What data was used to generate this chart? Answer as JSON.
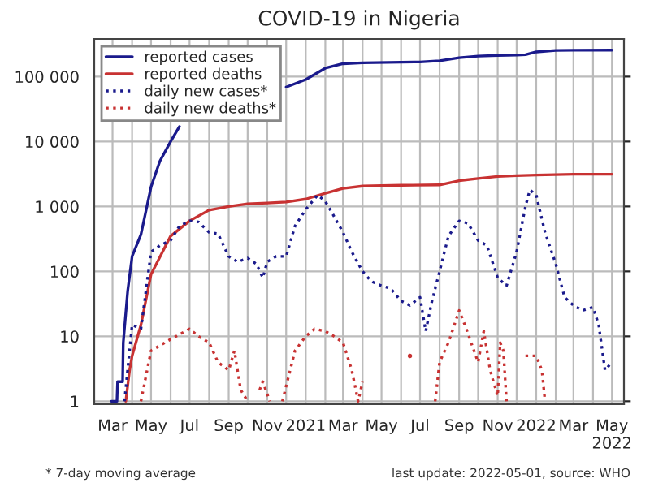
{
  "chart_data": {
    "type": "line",
    "title": "COVID-19 in Nigeria",
    "annotations": [
      "* 7-day moving average",
      "last update: 2022-05-01, source: WHO"
    ],
    "xlim": [
      "2020-02-01",
      "2022-05-20"
    ],
    "xticks": [
      {
        "value": "2020-03-01",
        "label": "Mar"
      },
      {
        "value": "2020-04-01",
        "label": null
      },
      {
        "value": "2020-05-01",
        "label": "May"
      },
      {
        "value": "2020-06-01",
        "label": null
      },
      {
        "value": "2020-07-01",
        "label": "Jul"
      },
      {
        "value": "2020-08-01",
        "label": null
      },
      {
        "value": "2020-09-01",
        "label": "Sep"
      },
      {
        "value": "2020-10-01",
        "label": null
      },
      {
        "value": "2020-11-01",
        "label": "Nov"
      },
      {
        "value": "2020-12-01",
        "label": null
      },
      {
        "value": "2021-01-01",
        "label": "2021"
      },
      {
        "value": "2021-02-01",
        "label": null
      },
      {
        "value": "2021-03-01",
        "label": "Mar"
      },
      {
        "value": "2021-04-01",
        "label": null
      },
      {
        "value": "2021-05-01",
        "label": "May"
      },
      {
        "value": "2021-06-01",
        "label": null
      },
      {
        "value": "2021-07-01",
        "label": "Jul"
      },
      {
        "value": "2021-08-01",
        "label": null
      },
      {
        "value": "2021-09-01",
        "label": "Sep"
      },
      {
        "value": "2021-10-01",
        "label": null
      },
      {
        "value": "2021-11-01",
        "label": "Nov"
      },
      {
        "value": "2021-12-01",
        "label": null
      },
      {
        "value": "2022-01-01",
        "label": "2022"
      },
      {
        "value": "2022-02-01",
        "label": null
      },
      {
        "value": "2022-03-01",
        "label": "Mar"
      },
      {
        "value": "2022-04-01",
        "label": null
      },
      {
        "value": "2022-05-01",
        "label": "May\n2022"
      }
    ],
    "log": "y",
    "ylim": [
      0.9,
      380000
    ],
    "yticks": [
      1,
      10,
      100,
      {
        "value": 1000,
        "label": "1 000"
      },
      {
        "value": 10000,
        "label": "10 000"
      },
      {
        "value": 100000,
        "label": "100 000"
      }
    ],
    "grid": true,
    "legend": "top left",
    "series": [
      {
        "name": "reported cases",
        "color": "#1a1a8c",
        "line_style": "solid",
        "x": [
          "2020-02-28",
          "2020-03-08",
          "2020-03-09",
          "2020-03-17",
          "2020-03-18",
          "2020-03-25",
          "2020-04-01",
          "2020-04-15",
          "2020-05-01",
          "2020-05-15",
          "2020-06-01",
          "2020-06-15",
          "2020-07-01",
          "2020-08-01",
          "2020-09-01",
          "2020-10-01",
          "2020-11-01",
          "2020-12-01",
          "2021-01-01",
          "2021-02-01",
          "2021-03-01",
          "2021-04-01",
          "2021-06-01",
          "2021-07-01",
          "2021-08-01",
          "2021-09-01",
          "2021-10-01",
          "2021-11-01",
          "2021-12-01",
          "2021-12-15",
          "2022-01-01",
          "2022-02-01",
          "2022-03-01",
          "2022-05-01"
        ],
        "values": [
          1,
          1,
          2,
          2,
          8,
          50,
          170,
          370,
          2000,
          5000,
          10000,
          17000,
          null,
          null,
          null,
          null,
          null,
          69000,
          90000,
          135000,
          158000,
          163000,
          167000,
          168000,
          175000,
          195000,
          207000,
          212000,
          214000,
          218000,
          240000,
          253000,
          255000,
          256000
        ]
      },
      {
        "name": "reported deaths",
        "color": "#c83232",
        "line_style": "solid",
        "x": [
          "2020-03-22",
          "2020-03-28",
          "2020-04-01",
          "2020-04-15",
          "2020-05-01",
          "2020-06-01",
          "2020-07-01",
          "2020-08-01",
          "2020-09-01",
          "2020-10-01",
          "2020-11-01",
          "2020-12-01",
          "2021-01-01",
          "2021-02-01",
          "2021-03-01",
          "2021-04-01",
          "2021-06-01",
          "2021-08-01",
          "2021-09-01",
          "2021-10-01",
          "2021-11-01",
          "2021-12-01",
          "2022-01-01",
          "2022-03-01",
          "2022-05-01"
        ],
        "values": [
          1,
          3,
          5,
          15,
          90,
          350,
          600,
          880,
          1000,
          1100,
          1130,
          1170,
          1300,
          1600,
          1900,
          2060,
          2120,
          2150,
          2500,
          2700,
          2900,
          2980,
          3050,
          3140,
          3143
        ]
      },
      {
        "name": "daily new cases*",
        "color": "#1a1a8c",
        "line_style": "dotted",
        "x": [
          "2020-03-20",
          "2020-04-01",
          "2020-04-15",
          "2020-05-01",
          "2020-05-15",
          "2020-06-01",
          "2020-06-15",
          "2020-07-01",
          "2020-07-15",
          "2020-08-01",
          "2020-08-15",
          "2020-09-01",
          "2020-09-15",
          "2020-10-01",
          "2020-10-15",
          "2020-10-25",
          "2020-11-01",
          "2020-11-15",
          "2020-12-01",
          "2020-12-15",
          "2021-01-01",
          "2021-01-20",
          "2021-02-01",
          "2021-02-15",
          "2021-03-01",
          "2021-03-15",
          "2021-04-01",
          "2021-04-15",
          "2021-05-01",
          "2021-05-15",
          "2021-06-01",
          "2021-06-15",
          "2021-07-01",
          "2021-07-10",
          "2021-07-20",
          "2021-08-01",
          "2021-08-15",
          "2021-09-01",
          "2021-09-15",
          "2021-10-01",
          "2021-10-15",
          "2021-11-01",
          "2021-11-15",
          "2021-12-01",
          "2021-12-15",
          "2021-12-22",
          "2022-01-01",
          "2022-01-15",
          "2022-02-01",
          "2022-02-15",
          "2022-03-01",
          "2022-03-15",
          "2022-04-01",
          "2022-04-10",
          "2022-04-20",
          "2022-05-01"
        ],
        "values": [
          1,
          15,
          13,
          200,
          250,
          300,
          500,
          600,
          580,
          400,
          380,
          170,
          140,
          160,
          130,
          80,
          140,
          170,
          170,
          500,
          900,
          1500,
          1200,
          700,
          400,
          200,
          100,
          70,
          60,
          55,
          35,
          30,
          40,
          12,
          35,
          100,
          350,
          600,
          550,
          300,
          250,
          80,
          60,
          200,
          1000,
          1800,
          1500,
          400,
          130,
          40,
          30,
          25,
          28,
          15,
          3,
          4
        ]
      },
      {
        "name": "daily new deaths*",
        "color": "#c83232",
        "line_style": "dotted",
        "x": [
          "2020-04-15",
          "2020-05-01",
          "2020-06-01",
          "2020-07-01",
          "2020-07-15",
          "2020-08-01",
          "2020-08-15",
          "2020-09-01",
          "2020-09-10",
          "2020-09-20",
          "2020-10-01",
          "2020-10-10",
          "2020-10-20",
          "2020-10-25",
          "2020-11-05",
          "2020-11-15",
          "2020-11-25",
          "2020-12-15",
          "2021-01-01",
          "2021-01-15",
          "2021-02-01",
          "2021-02-15",
          "2021-03-01",
          "2021-03-15",
          "2021-03-25",
          "2021-04-01",
          "2021-05-01",
          "2021-06-15",
          "2021-07-01",
          "2021-07-25",
          "2021-08-01",
          "2021-08-15",
          "2021-09-01",
          "2021-09-10",
          "2021-09-20",
          "2021-10-01",
          "2021-10-10",
          "2021-10-20",
          "2021-11-01",
          "2021-11-05",
          "2021-11-10",
          "2021-11-15",
          "2021-12-01",
          "2021-12-15",
          "2022-01-01",
          "2022-01-10",
          "2022-01-15"
        ],
        "values": [
          1,
          6,
          9,
          13,
          10,
          8,
          4,
          3,
          6,
          1.5,
          1,
          null,
          1.5,
          2,
          1,
          null,
          1,
          6,
          10,
          13,
          12,
          10,
          8,
          3,
          1,
          2,
          null,
          5,
          null,
          1,
          4,
          8,
          25,
          15,
          8,
          4,
          12,
          3,
          1.2,
          8,
          6,
          1,
          null,
          5,
          5,
          3,
          1
        ]
      }
    ]
  }
}
